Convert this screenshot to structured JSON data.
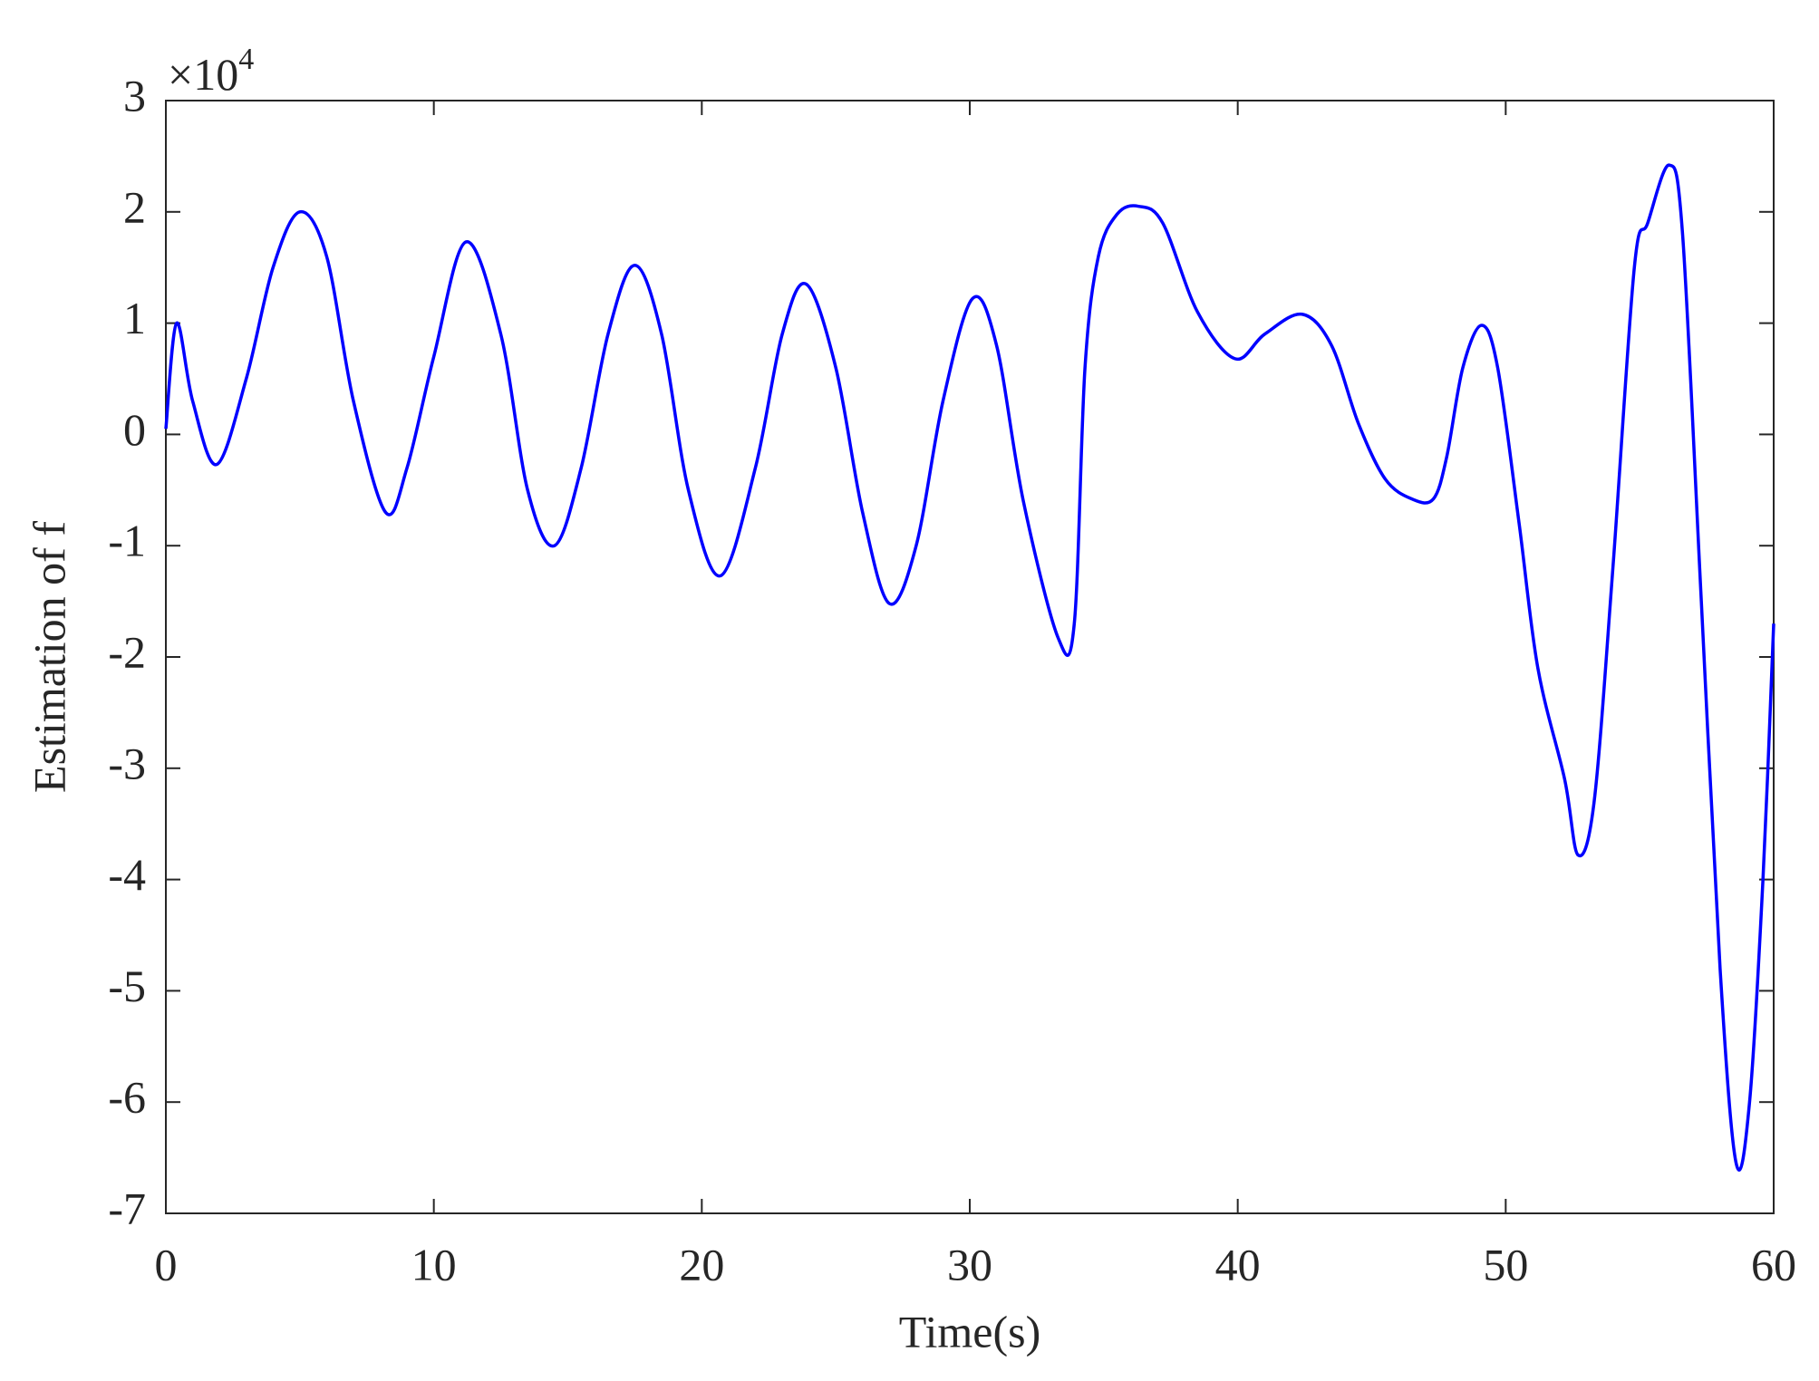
{
  "chart_data": {
    "type": "line",
    "x_label": "Time(s)",
    "y_label": "Estimation of f",
    "y_multiplier": "×10",
    "y_multiplier_exponent": "4",
    "xlim": [
      0,
      60
    ],
    "xticks": [
      0,
      10,
      20,
      30,
      40,
      50,
      60
    ],
    "ylim": [
      -7,
      3
    ],
    "yticks": [
      -7,
      -6,
      -5,
      -4,
      -3,
      -2,
      -1,
      0,
      1,
      2,
      3
    ],
    "series": [
      {
        "color": "#0000ff",
        "x": [
          0,
          0.4,
          1.0,
          1.9,
          3,
          4,
          5,
          6,
          7,
          8.2,
          9,
          10,
          11.2,
          12.5,
          13.5,
          14.5,
          15.5,
          16.5,
          17.5,
          18.5,
          19.5,
          20.7,
          22,
          23,
          23.9,
          25,
          26,
          27,
          28,
          29,
          30.1,
          31,
          32,
          33.3,
          33.9,
          34.3,
          34.8,
          35.5,
          36.3,
          37.2,
          38.5,
          39.9,
          41,
          42.4,
          43.5,
          44.5,
          45.5,
          46.5,
          47.3,
          47.8,
          48.4,
          49.1,
          49.7,
          50.5,
          51.2,
          52.2,
          52.7,
          53.3,
          54,
          54.8,
          55.3,
          56.1,
          56.6,
          57.3,
          58,
          58.6,
          59.1,
          59.6,
          60
        ],
        "values": [
          0.05,
          1.0,
          0.3,
          -0.27,
          0.5,
          1.5,
          2.0,
          1.6,
          0.3,
          -0.7,
          -0.3,
          0.7,
          1.73,
          0.9,
          -0.5,
          -1.0,
          -0.3,
          0.9,
          1.52,
          0.9,
          -0.5,
          -1.27,
          -0.3,
          0.9,
          1.35,
          0.6,
          -0.7,
          -1.52,
          -1.0,
          0.3,
          1.22,
          0.8,
          -0.6,
          -1.83,
          -1.7,
          0.6,
          1.6,
          1.98,
          2.05,
          1.9,
          1.1,
          0.68,
          0.9,
          1.08,
          0.8,
          0.1,
          -0.4,
          -0.58,
          -0.58,
          -0.2,
          0.6,
          0.98,
          0.6,
          -0.8,
          -2.1,
          -3.1,
          -3.78,
          -3.3,
          -1.2,
          1.5,
          1.9,
          2.42,
          1.8,
          -1.5,
          -4.8,
          -6.55,
          -6.0,
          -4.0,
          -1.7
        ]
      }
    ]
  }
}
